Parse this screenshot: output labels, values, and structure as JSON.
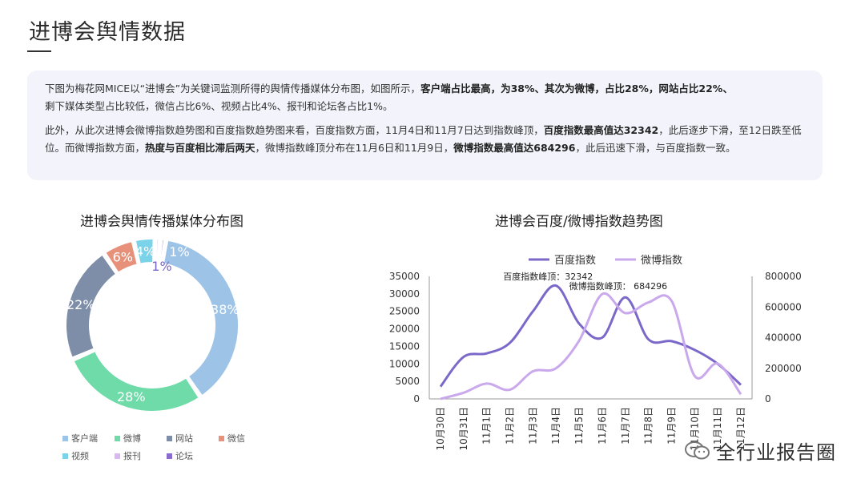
{
  "page": {
    "title": "进博会舆情数据"
  },
  "summary": {
    "p1_a": "下图为梅花网MICE以“进博会”为关键词监测所得的舆情传播媒体分布图，如图所示，",
    "p1_b": "客户端占比最高，为38%、其次为微博，占比28%，网站占比22%、",
    "p1_c": "剩下媒体类型占比较低，微信占比6%、视频占比4%、报刊和论坛各占比1%。",
    "p2_a": "此外，从此次进博会微博指数趋势图和百度指数趋势图来看，百度指数方面，11月4日和11月7日达到指数峰顶，",
    "p2_b": "百度指数最高值达32342",
    "p2_c": "，此后逐步下滑，至12日跌至低位。",
    "p2_d": "而微博指数方面，",
    "p2_e": "热度与百度相比滞后两天",
    "p2_f": "，微博指数峰顶分布在11月6日和11月9日，",
    "p2_g": "微博指数最高值达684296",
    "p2_h": "，此后迅速下滑，与百度指数一致。"
  },
  "watermark": {
    "text": "全行业报告圈",
    "icon": "wechat-icon"
  },
  "chart_data": [
    {
      "type": "pie",
      "variant": "donut",
      "title": "进博会舆情传播媒体分布图",
      "categories": [
        "客户端",
        "微博",
        "网站",
        "微信",
        "视频",
        "报刊",
        "论坛"
      ],
      "values": [
        38,
        28,
        22,
        6,
        4,
        1,
        1
      ],
      "labels": [
        "38%",
        "28%",
        "22%",
        "6%",
        "4%",
        "1%",
        "1%"
      ],
      "colors": [
        "#9dc3e6",
        "#6fdba9",
        "#7f8ea8",
        "#e8917a",
        "#7ad3e8",
        "#d7b8f0",
        "#8a6ccf"
      ],
      "legend_position": "bottom"
    },
    {
      "type": "line",
      "title": "进博会百度/微博指数趋势图",
      "categories": [
        "10月30日",
        "10月31日",
        "11月1日",
        "11月2日",
        "11月3日",
        "11月4日",
        "11月5日",
        "11月6日",
        "11月7日",
        "11月8日",
        "11月9日",
        "11月10日",
        "11月11日",
        "11月12日"
      ],
      "series": [
        {
          "name": "百度指数",
          "axis": "left",
          "color": "#7b68c9",
          "values": [
            3500,
            12000,
            13000,
            16000,
            25000,
            32342,
            21500,
            17500,
            29000,
            17000,
            16500,
            14000,
            10000,
            4000
          ]
        },
        {
          "name": "微博指数",
          "axis": "right",
          "color": "#c9a8ec",
          "values": [
            0,
            40000,
            100000,
            60000,
            180000,
            200000,
            380000,
            684296,
            560000,
            630000,
            640000,
            150000,
            230000,
            30000
          ]
        }
      ],
      "y_left": {
        "min": 0,
        "max": 35000,
        "ticks": [
          0,
          5000,
          10000,
          15000,
          20000,
          25000,
          30000,
          35000
        ]
      },
      "y_right": {
        "min": 0,
        "max": 800000,
        "ticks": [
          0,
          200000,
          400000,
          600000,
          800000
        ]
      },
      "annotations": [
        {
          "text": "百度指数峰顶：32342",
          "series": "百度指数",
          "index": 5
        },
        {
          "text": "微博指数峰顶：  684296",
          "series": "微博指数",
          "index": 7
        }
      ],
      "legend_position": "top",
      "grid": false
    }
  ]
}
